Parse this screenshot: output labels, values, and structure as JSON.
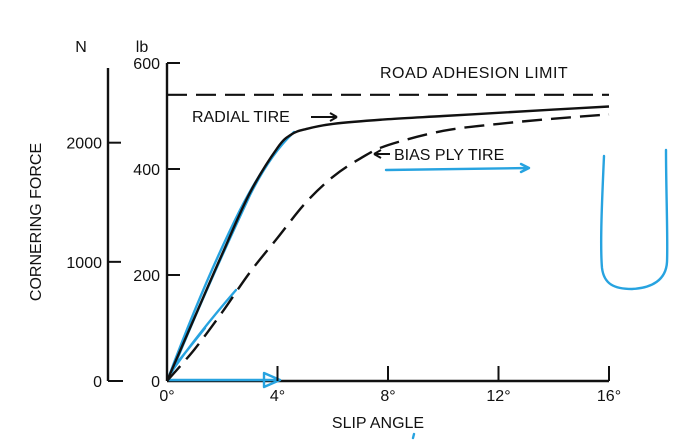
{
  "chart_data": {
    "type": "line",
    "title": "",
    "xlabel": "SLIP ANGLE",
    "ylabel": "CORNERING FORCE",
    "xlim": [
      0,
      16
    ],
    "x_ticks": [
      0,
      4,
      8,
      12,
      16
    ],
    "x_tick_labels": [
      "0°",
      "4°",
      "8°",
      "12°",
      "16°"
    ],
    "y_lb_lim": [
      0,
      600
    ],
    "y_lb_ticks": [
      0,
      200,
      400,
      600
    ],
    "y_lb_tick_labels": [
      "0",
      "200",
      "400",
      "600"
    ],
    "y_lb_unit": "lb",
    "y_n_ticks": [
      0,
      1000,
      2000
    ],
    "y_n_tick_labels": [
      "0",
      "1000",
      "2000"
    ],
    "y_n_unit": "N",
    "limit": {
      "name": "ROAD ADHESION LIMIT",
      "value_lb": 540
    },
    "series": [
      {
        "name": "RADIAL TIRE",
        "style": "solid",
        "x": [
          0,
          1,
          2,
          3,
          4,
          4.5,
          5,
          6,
          8,
          10,
          12,
          14,
          16
        ],
        "y_lb": [
          0,
          120,
          240,
          355,
          440,
          465,
          475,
          485,
          494,
          500,
          506,
          512,
          518
        ]
      },
      {
        "name": "BIAS PLY TIRE",
        "style": "dashed",
        "x": [
          0,
          1,
          2,
          3,
          4,
          5,
          6,
          7,
          8,
          10,
          12,
          14,
          16
        ],
        "y_lb": [
          0,
          60,
          130,
          205,
          270,
          335,
          385,
          420,
          445,
          472,
          485,
          495,
          503
        ]
      }
    ],
    "annotations": [
      "RADIAL TIRE",
      "BIAS PLY TIRE"
    ],
    "grid": false,
    "legend": "none"
  },
  "colors": {
    "ink": "#111111",
    "pen": "#27a3e0"
  }
}
